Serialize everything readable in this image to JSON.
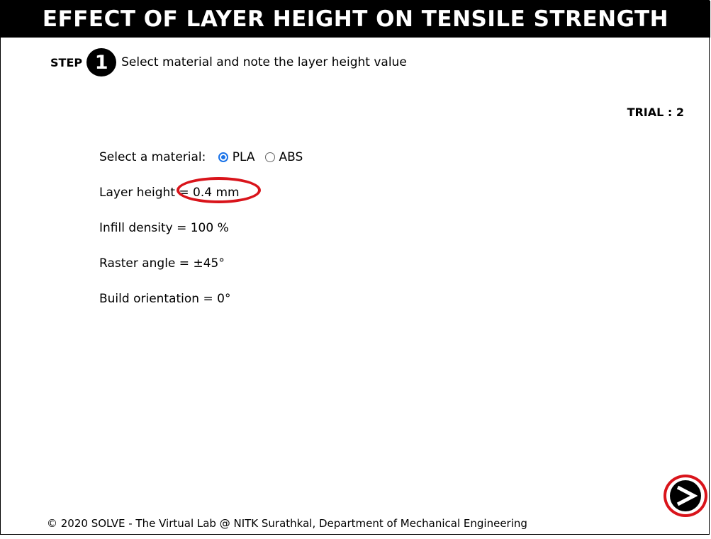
{
  "header": {
    "title": "EFFECT OF LAYER HEIGHT ON TENSILE STRENGTH"
  },
  "step": {
    "label": "STEP",
    "number": "1",
    "instruction": "Select material and note the layer height value"
  },
  "trial": {
    "text": "TRIAL : 2"
  },
  "material": {
    "prompt": "Select a material: ",
    "options": [
      {
        "label": "PLA",
        "selected": true
      },
      {
        "label": "ABS",
        "selected": false
      }
    ]
  },
  "params": {
    "layer_height_label": "Layer height ",
    "layer_height_value": "= 0.4 mm",
    "infill_density": "Infill density = 100 %",
    "raster_angle": "Raster angle = ±45°",
    "build_orientation": "Build orientation = 0°"
  },
  "icons": {
    "next": "next-arrow-icon",
    "radio_selected": "radio-selected-icon",
    "radio_unselected": "radio-unselected-icon"
  },
  "colors": {
    "highlight": "#d9141b",
    "radio_accent": "#1a73e8",
    "title_bg": "#000000",
    "title_fg": "#ffffff"
  },
  "footer": {
    "text": "© 2020 SOLVE - The Virtual Lab @ NITK Surathkal, Department of Mechanical Engineering"
  }
}
